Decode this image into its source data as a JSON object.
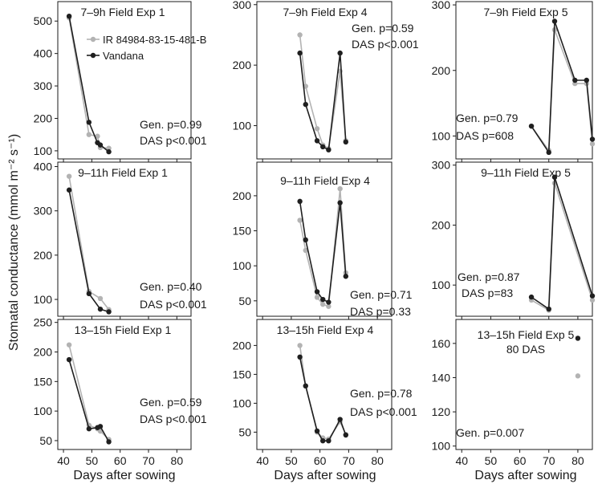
{
  "figure": {
    "ylabel": "Stomatal conductance (mmol m⁻² s⁻¹)",
    "xlabel": "Days after sowing",
    "colors": {
      "ir": "#b3b3b3",
      "vandana": "#1f1f1f",
      "axis": "#1a1a1a"
    }
  },
  "chart_data": [
    {
      "type": "line",
      "title": "7–9h Field Exp 1",
      "xlim": [
        38,
        85
      ],
      "ylim": [
        75,
        560
      ],
      "yticks": [
        100,
        200,
        300,
        400,
        500
      ],
      "xticks": [
        40,
        50,
        60,
        70,
        80
      ],
      "legend": [
        "IR 84984-83-15-481-B",
        "Vandana"
      ],
      "annotations": [
        "Gen. p=0.99",
        "DAS p<0.001"
      ],
      "series": [
        {
          "name": "IR 84984-83-15-481-B",
          "x": [
            42,
            49,
            52,
            53,
            56
          ],
          "y": [
            510,
            150,
            145,
            110,
            108
          ]
        },
        {
          "name": "Vandana",
          "x": [
            42,
            49,
            52,
            53,
            56
          ],
          "y": [
            515,
            188,
            125,
            118,
            97
          ]
        }
      ]
    },
    {
      "type": "line",
      "title": "7–9h Field Exp 4",
      "xlim": [
        38,
        85
      ],
      "ylim": [
        45,
        305
      ],
      "yticks": [
        100,
        200,
        300
      ],
      "xticks": [
        40,
        50,
        60,
        70,
        80
      ],
      "annotations": [
        "Gen. p=0.59",
        "DAS p<0.001"
      ],
      "series": [
        {
          "name": "IR 84984-83-15-481-B",
          "x": [
            53,
            55,
            59,
            61,
            63,
            67,
            69
          ],
          "y": [
            250,
            165,
            95,
            68,
            62,
            190,
            75
          ]
        },
        {
          "name": "Vandana",
          "x": [
            53,
            55,
            59,
            61,
            63,
            67,
            69
          ],
          "y": [
            220,
            135,
            75,
            65,
            60,
            220,
            73
          ]
        }
      ]
    },
    {
      "type": "line",
      "title": "7–9h Field Exp 5",
      "xlim": [
        38,
        85
      ],
      "ylim": [
        65,
        305
      ],
      "yticks": [
        100,
        200,
        300
      ],
      "xticks": [
        40,
        50,
        60,
        70,
        80
      ],
      "annotations": [
        "Gen. p=0.79",
        "DAS p=608"
      ],
      "series": [
        {
          "name": "IR 84984-83-15-481-B",
          "x": [
            64,
            70,
            72,
            79,
            83,
            85
          ],
          "y": [
            115,
            78,
            262,
            180,
            180,
            88
          ]
        },
        {
          "name": "Vandana",
          "x": [
            64,
            70,
            72,
            79,
            83,
            85
          ],
          "y": [
            115,
            75,
            275,
            185,
            185,
            95
          ]
        }
      ]
    },
    {
      "type": "line",
      "title": "9–11h Field Exp 1",
      "xlim": [
        38,
        85
      ],
      "ylim": [
        62,
        410
      ],
      "yticks": [
        100,
        200,
        300,
        400
      ],
      "xticks": [
        40,
        50,
        60,
        70,
        80
      ],
      "annotations": [
        "Gen. p=0.40",
        "DAS p<0.001"
      ],
      "series": [
        {
          "name": "IR 84984-83-15-481-B",
          "x": [
            42,
            49,
            53,
            56
          ],
          "y": [
            378,
            118,
            102,
            77
          ]
        },
        {
          "name": "Vandana",
          "x": [
            42,
            49,
            53,
            56
          ],
          "y": [
            347,
            113,
            78,
            72
          ]
        }
      ]
    },
    {
      "type": "line",
      "title": "9–11h Field Exp 4",
      "xlim": [
        38,
        85
      ],
      "ylim": [
        28,
        248
      ],
      "yticks": [
        50,
        100,
        150,
        200
      ],
      "xticks": [
        40,
        50,
        60,
        70,
        80
      ],
      "annotations": [
        "Gen. p=0.71",
        "DAS p=0.33"
      ],
      "series": [
        {
          "name": "IR 84984-83-15-481-B",
          "x": [
            53,
            55,
            59,
            61,
            63,
            67,
            69
          ],
          "y": [
            165,
            122,
            55,
            45,
            42,
            210,
            90
          ]
        },
        {
          "name": "Vandana",
          "x": [
            53,
            55,
            59,
            61,
            63,
            67,
            69
          ],
          "y": [
            192,
            137,
            63,
            52,
            48,
            190,
            85
          ]
        }
      ]
    },
    {
      "type": "line",
      "title": "9–11h Field Exp 5",
      "xlim": [
        38,
        85
      ],
      "ylim": [
        48,
        305
      ],
      "yticks": [
        100,
        200,
        300
      ],
      "xticks": [
        40,
        50,
        60,
        70,
        80
      ],
      "annotations": [
        "Gen. p=0.87",
        "DAS p=83"
      ],
      "series": [
        {
          "name": "IR 84984-83-15-481-B",
          "x": [
            64,
            70,
            72,
            85
          ],
          "y": [
            75,
            58,
            270,
            75
          ]
        },
        {
          "name": "Vandana",
          "x": [
            64,
            70,
            72,
            85
          ],
          "y": [
            80,
            60,
            280,
            82
          ]
        }
      ]
    },
    {
      "type": "line",
      "title": "13–15h Field Exp 1",
      "xlim": [
        38,
        85
      ],
      "ylim": [
        35,
        255
      ],
      "yticks": [
        50,
        100,
        150,
        200,
        250
      ],
      "xticks": [
        40,
        50,
        60,
        70,
        80
      ],
      "annotations": [
        "Gen. p=0.59",
        "DAS p<0.001"
      ],
      "series": [
        {
          "name": "IR 84984-83-15-481-B",
          "x": [
            42,
            49,
            52,
            53,
            56
          ],
          "y": [
            212,
            76,
            70,
            66,
            52
          ]
        },
        {
          "name": "Vandana",
          "x": [
            42,
            49,
            52,
            53,
            56
          ],
          "y": [
            187,
            70,
            72,
            74,
            48
          ]
        }
      ]
    },
    {
      "type": "line",
      "title": "13–15h Field Exp 4",
      "xlim": [
        38,
        85
      ],
      "ylim": [
        20,
        245
      ],
      "yticks": [
        50,
        100,
        150,
        200
      ],
      "xticks": [
        40,
        50,
        60,
        70,
        80
      ],
      "annotations": [
        "Gen. p=0.78",
        "DAS p<0.001"
      ],
      "series": [
        {
          "name": "IR 84984-83-15-481-B",
          "x": [
            53,
            55,
            59,
            61,
            63,
            67,
            69
          ],
          "y": [
            200,
            130,
            50,
            40,
            38,
            68,
            46
          ]
        },
        {
          "name": "Vandana",
          "x": [
            53,
            55,
            59,
            61,
            63,
            67,
            69
          ],
          "y": [
            180,
            130,
            52,
            35,
            35,
            72,
            45
          ]
        }
      ]
    },
    {
      "type": "scatter",
      "title": "13–15h Field Exp 5",
      "subtitle": "80 DAS",
      "xlim": [
        38,
        85
      ],
      "ylim": [
        98,
        174
      ],
      "yticks": [
        100,
        120,
        140,
        160
      ],
      "xticks": [
        40,
        50,
        60,
        70,
        80
      ],
      "annotations": [
        "Gen. p=0.007"
      ],
      "series": [
        {
          "name": "IR 84984-83-15-481-B",
          "x": [
            80
          ],
          "y": [
            141
          ]
        },
        {
          "name": "Vandana",
          "x": [
            80
          ],
          "y": [
            163
          ]
        }
      ]
    }
  ]
}
